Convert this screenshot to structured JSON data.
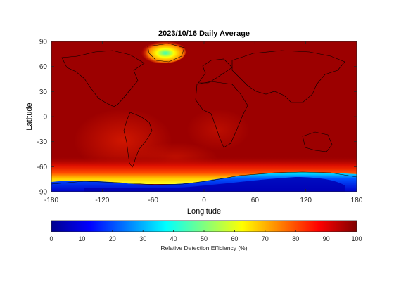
{
  "figure": {
    "title": "2023/10/16 Daily Average",
    "xlabel": "Longitude",
    "ylabel": "Latitude",
    "colorbar_label": "Relative Detection Efficiency (%)"
  },
  "chart_data": {
    "type": "heatmap",
    "title": "2023/10/16 Daily Average",
    "xlabel": "Longitude",
    "ylabel": "Latitude",
    "xlim": [
      -180,
      180
    ],
    "ylim": [
      -90,
      90
    ],
    "xticks": [
      -180,
      -120,
      -60,
      0,
      60,
      120,
      180
    ],
    "yticks": [
      90,
      60,
      30,
      0,
      -30,
      -60,
      -90
    ],
    "colormap": "jet",
    "clim": [
      0,
      100
    ],
    "colorbar_ticks": [
      0,
      10,
      20,
      30,
      40,
      50,
      60,
      70,
      80,
      90,
      100
    ],
    "colorbar_label": "Relative Detection Efficiency (%)",
    "colorbar_location": "bottom",
    "background_value": 97,
    "regions": [
      {
        "name": "Antarctica",
        "min_value": 5
      },
      {
        "name": "Southern Ocean",
        "value_range": [
          60,
          90
        ]
      },
      {
        "name": "Greenland",
        "min_value": 50
      }
    ],
    "coastlines": true
  }
}
